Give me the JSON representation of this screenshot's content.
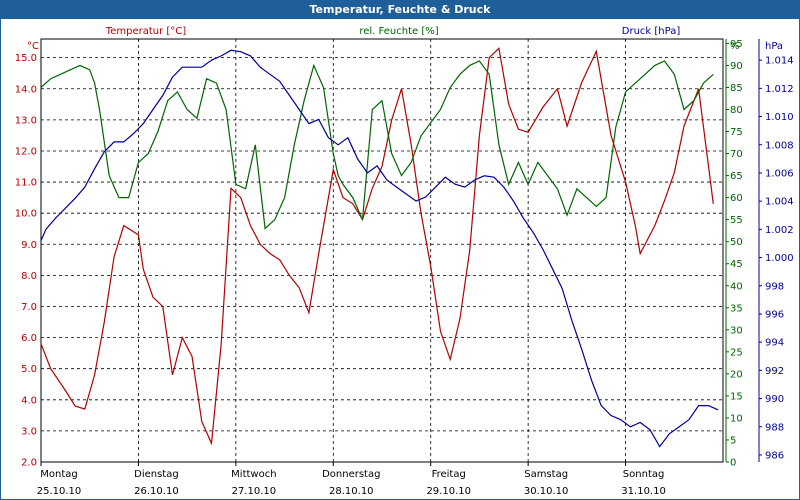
{
  "window": {
    "title": "Temperatur, Feuchte & Druck"
  },
  "chart_data": {
    "type": "line",
    "title": "Temperatur, Feuchte & Druck",
    "colors": {
      "temperature": "#b30000",
      "humidity": "#006400",
      "pressure": "#000099",
      "titlebar": "#1e5f9a"
    },
    "axes": {
      "temp": {
        "unit": "°C",
        "min": 2,
        "max": 15.6,
        "ticks": [
          "2.0",
          "3.0",
          "4.0",
          "5.0",
          "6.0",
          "7.0",
          "8.0",
          "9.0",
          "10.0",
          "11.0",
          "12.0",
          "13.0",
          "14.0",
          "15.0"
        ]
      },
      "hum": {
        "unit": "%",
        "min": 0,
        "max": 96,
        "ticks": [
          "0",
          "5",
          "10",
          "15",
          "20",
          "25",
          "30",
          "35",
          "40",
          "45",
          "50",
          "55",
          "60",
          "65",
          "70",
          "75",
          "80",
          "85",
          "90",
          "95"
        ]
      },
      "press": {
        "unit": "hPa",
        "min": 985.5,
        "max": 1015.5,
        "ticks": [
          "986",
          "988",
          "990",
          "992",
          "994",
          "996",
          "998",
          "1.000",
          "1.002",
          "1.004",
          "1.006",
          "1.008",
          "1.010",
          "1.012",
          "1.014"
        ]
      }
    },
    "x_labels": [
      {
        "day": "Montag",
        "date": "25.10.10"
      },
      {
        "day": "Dienstag",
        "date": "26.10.10"
      },
      {
        "day": "Mittwoch",
        "date": "27.10.10"
      },
      {
        "day": "Donnerstag",
        "date": "28.10.10"
      },
      {
        "day": "Freitag",
        "date": "29.10.10"
      },
      {
        "day": "Samstag",
        "date": "30.10.10"
      },
      {
        "day": "Sonntag",
        "date": "31.10.10"
      }
    ],
    "series": [
      {
        "name": "Temperatur [°C]",
        "axis": "temp",
        "x_days": [
          0,
          0.1,
          0.25,
          0.35,
          0.45,
          0.55,
          0.65,
          0.75,
          0.85,
          1.0,
          1.05,
          1.15,
          1.25,
          1.35,
          1.45,
          1.55,
          1.65,
          1.75,
          1.85,
          1.95,
          2.05,
          2.15,
          2.25,
          2.35,
          2.45,
          2.55,
          2.65,
          2.75,
          2.85,
          3.0,
          3.1,
          3.2,
          3.3,
          3.4,
          3.5,
          3.6,
          3.7,
          3.8,
          3.9,
          4.0,
          4.1,
          4.2,
          4.3,
          4.4,
          4.5,
          4.6,
          4.7,
          4.8,
          4.9,
          5.0,
          5.15,
          5.3,
          5.4,
          5.55,
          5.7,
          5.85,
          6.0,
          6.1,
          6.15,
          6.3,
          6.4,
          6.5,
          6.6,
          6.75,
          6.9
        ],
        "values": [
          5.8,
          5.0,
          4.3,
          3.8,
          3.7,
          4.8,
          6.5,
          8.6,
          9.6,
          9.3,
          8.2,
          7.3,
          7.0,
          4.8,
          6.0,
          5.4,
          3.3,
          2.6,
          5.8,
          10.8,
          10.5,
          9.6,
          9.0,
          8.7,
          8.5,
          8.0,
          7.6,
          6.8,
          8.7,
          11.4,
          10.5,
          10.3,
          9.8,
          10.8,
          11.5,
          13.0,
          14.0,
          12.2,
          10.0,
          8.3,
          6.2,
          5.3,
          6.6,
          8.8,
          12.5,
          15.0,
          15.3,
          13.5,
          12.7,
          12.6,
          13.4,
          14.0,
          12.8,
          14.2,
          15.2,
          12.5,
          11.0,
          9.6,
          8.7,
          9.6,
          10.4,
          11.3,
          12.8,
          14.0,
          10.3
        ]
      },
      {
        "name": "rel. Feuchte [%]",
        "axis": "hum",
        "x_days": [
          0,
          0.1,
          0.2,
          0.3,
          0.4,
          0.5,
          0.55,
          0.6,
          0.7,
          0.8,
          0.9,
          1.0,
          1.1,
          1.2,
          1.3,
          1.4,
          1.5,
          1.6,
          1.7,
          1.8,
          1.9,
          2.0,
          2.1,
          2.2,
          2.3,
          2.4,
          2.5,
          2.6,
          2.7,
          2.8,
          2.9,
          3.0,
          3.05,
          3.1,
          3.2,
          3.3,
          3.4,
          3.5,
          3.6,
          3.7,
          3.8,
          3.9,
          4.0,
          4.1,
          4.2,
          4.3,
          4.4,
          4.5,
          4.6,
          4.7,
          4.8,
          4.9,
          5.0,
          5.1,
          5.2,
          5.3,
          5.4,
          5.5,
          5.6,
          5.7,
          5.8,
          5.9,
          6.0,
          6.1,
          6.2,
          6.3,
          6.4,
          6.5,
          6.6,
          6.7,
          6.8,
          6.9
        ],
        "values": [
          85,
          87,
          88,
          89,
          90,
          89,
          86,
          80,
          65,
          60,
          60,
          68,
          70,
          75,
          82,
          84,
          80,
          78,
          87,
          86,
          80,
          63,
          62,
          72,
          53,
          55,
          60,
          72,
          82,
          90,
          85,
          70,
          65,
          63,
          60,
          55,
          80,
          82,
          70,
          65,
          68,
          74,
          77,
          80,
          85,
          88,
          90,
          91,
          88,
          72,
          63,
          68,
          63,
          68,
          65,
          62,
          56,
          62,
          60,
          58,
          60,
          76,
          84,
          86,
          88,
          90,
          91,
          88,
          80,
          82,
          86,
          88
        ]
      },
      {
        "name": "Druck [hPa]",
        "axis": "press",
        "x_days": [
          0,
          0.05,
          0.15,
          0.25,
          0.35,
          0.45,
          0.55,
          0.65,
          0.75,
          0.85,
          0.95,
          1.05,
          1.15,
          1.25,
          1.35,
          1.45,
          1.55,
          1.65,
          1.75,
          1.85,
          1.95,
          2.05,
          2.15,
          2.25,
          2.35,
          2.45,
          2.55,
          2.65,
          2.75,
          2.85,
          2.95,
          3.05,
          3.15,
          3.25,
          3.35,
          3.45,
          3.55,
          3.65,
          3.75,
          3.85,
          3.95,
          4.05,
          4.15,
          4.25,
          4.35,
          4.45,
          4.55,
          4.65,
          4.75,
          4.85,
          4.95,
          5.05,
          5.15,
          5.25,
          5.35,
          5.45,
          5.55,
          5.65,
          5.75,
          5.85,
          5.95,
          6.05,
          6.15,
          6.25,
          6.35,
          6.45,
          6.55,
          6.65,
          6.75,
          6.85,
          6.95
        ],
        "values": [
          1001.2,
          1002.0,
          1002.8,
          1003.5,
          1004.2,
          1005.0,
          1006.3,
          1007.5,
          1008.2,
          1008.2,
          1008.8,
          1009.5,
          1010.5,
          1011.5,
          1012.8,
          1013.5,
          1013.5,
          1013.5,
          1014.0,
          1014.3,
          1014.7,
          1014.6,
          1014.3,
          1013.5,
          1013.0,
          1012.5,
          1011.5,
          1010.5,
          1009.5,
          1009.8,
          1008.5,
          1008.0,
          1008.5,
          1007.0,
          1006.0,
          1006.5,
          1005.5,
          1005.0,
          1004.5,
          1004.0,
          1004.3,
          1005.0,
          1005.7,
          1005.2,
          1005.0,
          1005.5,
          1005.8,
          1005.7,
          1005.0,
          1004.0,
          1002.8,
          1001.8,
          1000.6,
          999.2,
          997.8,
          995.5,
          993.5,
          991.3,
          989.5,
          988.8,
          988.5,
          988.0,
          988.3,
          987.8,
          986.6,
          987.5,
          988.0,
          988.5,
          989.5,
          989.5,
          989.2
        ]
      }
    ]
  }
}
